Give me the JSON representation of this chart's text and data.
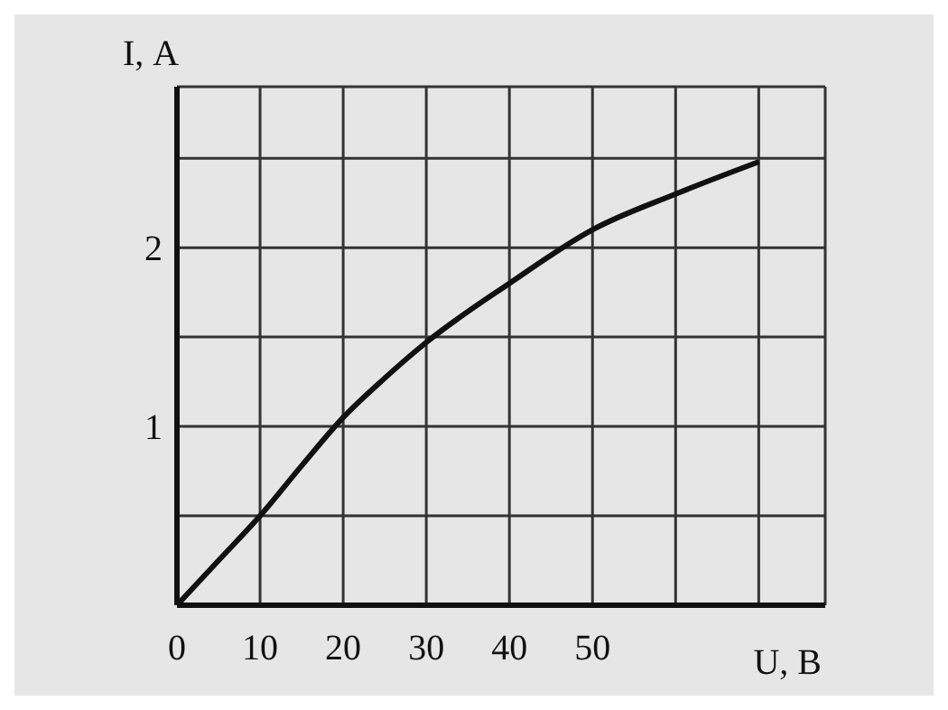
{
  "chart_data": {
    "type": "line",
    "xlabel": "U, В",
    "ylabel": "I, А",
    "x": [
      0,
      5,
      10,
      15,
      20,
      25,
      30,
      40,
      50,
      60,
      70
    ],
    "series": [
      {
        "color": "#111111",
        "values": [
          0,
          0.25,
          0.5,
          0.78,
          1.05,
          1.27,
          1.47,
          1.8,
          2.1,
          2.3,
          2.48
        ]
      }
    ],
    "xlim": [
      0,
      78
    ],
    "ylim": [
      0,
      2.9
    ],
    "xticks": [
      0,
      10,
      20,
      30,
      40,
      50,
      {
        "value": 60,
        "label": null
      },
      {
        "value": 70,
        "label": null
      }
    ],
    "yticks": [
      {
        "value": 0,
        "label": null
      },
      {
        "value": 0.5,
        "label": null
      },
      1,
      {
        "value": 1.5,
        "label": null
      },
      2,
      {
        "value": 2.5,
        "label": null
      }
    ],
    "grid": true,
    "marker": "none",
    "line_style": "solid"
  }
}
